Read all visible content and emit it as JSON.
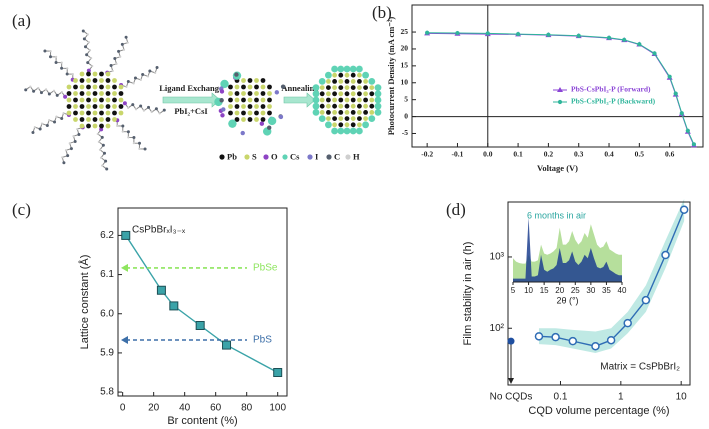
{
  "panel_labels": [
    "(a)",
    "(b)",
    "(c)",
    "(d)"
  ],
  "diagram": {
    "steps": [
      {
        "label": "Ligand Exchange",
        "reagent": "PbI₂+CsI"
      },
      {
        "label": "Annealing"
      }
    ],
    "legend": [
      {
        "name": "Pb",
        "color": "#111111"
      },
      {
        "name": "S",
        "color": "#c9d66b"
      },
      {
        "name": "O",
        "color": "#8e44c4"
      },
      {
        "name": "Cs",
        "color": "#5fd3b5"
      },
      {
        "name": "I",
        "color": "#7c78c9"
      },
      {
        "name": "C",
        "color": "#555f6e"
      },
      {
        "name": "H",
        "color": "#cfcfcf"
      }
    ]
  },
  "chart_data": [
    {
      "type": "line",
      "xlabel": "Voltage (V)",
      "ylabel": "Photocurrent Density (mA cm⁻²)",
      "x": [
        -0.2,
        -0.1,
        0,
        0.1,
        0.2,
        0.3,
        0.4,
        0.45,
        0.5,
        0.55,
        0.6,
        0.62,
        0.64,
        0.66,
        0.68
      ],
      "series": [
        {
          "name": "PbS-CsPbI₃-P (Forward)",
          "color": "#8b45d6",
          "marker": "triangle",
          "values": [
            24.6,
            24.5,
            24.4,
            24.3,
            24.1,
            23.8,
            23.2,
            22.6,
            21.3,
            18.5,
            11.5,
            6.5,
            0.8,
            -4.5,
            -8.5
          ]
        },
        {
          "name": "PbS-CsPbI₃-P (Backward)",
          "color": "#2fb59b",
          "marker": "circle",
          "values": [
            24.8,
            24.7,
            24.6,
            24.4,
            24.2,
            23.9,
            23.3,
            22.7,
            21.4,
            18.7,
            11.8,
            6.8,
            1.0,
            -4.2,
            -8.2
          ]
        }
      ],
      "xlim": [
        -0.25,
        0.71
      ],
      "xticks": [
        -0.2,
        -0.1,
        {
          "value": 0,
          "label": "0.0"
        },
        0.1,
        0.2,
        0.3,
        0.4,
        0.5,
        0.6
      ],
      "ylim": [
        -9,
        33
      ],
      "yticks": [
        -5,
        0,
        5,
        10,
        15,
        20,
        25
      ],
      "origin_lines": true,
      "legend": "right"
    },
    {
      "type": "line",
      "title": "CsPbBrₓI₃₋ₓ",
      "xlabel": "Br content (%)",
      "ylabel": "Lattice constant (Å)",
      "x": [
        2,
        25,
        33,
        50,
        67,
        100
      ],
      "series": [
        {
          "color": "#3aa3a8",
          "marker": "square",
          "values": [
            6.2,
            6.06,
            6.02,
            5.97,
            5.92,
            5.85
          ]
        }
      ],
      "xlim": [
        -3,
        106
      ],
      "xticks": [
        0,
        20,
        40,
        60,
        80,
        100
      ],
      "ylim": [
        5.79,
        6.27
      ],
      "yticks": [
        5.8,
        5.9,
        {
          "value": 6,
          "label": "6.0"
        },
        6.1,
        6.2
      ],
      "reference_lines": [
        {
          "label": "PbSe",
          "value": 6.117,
          "color": "#8ee55e"
        },
        {
          "label": "PbS",
          "value": 5.933,
          "color": "#3d6fa8"
        }
      ]
    },
    {
      "type": "line",
      "xlabel": "CQD volume percentage (%)",
      "ylabel": "Film stability in air (h)",
      "xlog": true,
      "ylog": true,
      "x": [
        0.044,
        0.083,
        0.16,
        0.38,
        0.69,
        1.3,
        2.6,
        5.5,
        11.2
      ],
      "series": [
        {
          "color": "#2f6db5",
          "marker": "hollow-circle",
          "values": [
            77,
            75,
            66,
            56,
            68,
            118,
            248,
            1065,
            4600
          ],
          "band_lower": [
            60,
            58,
            52,
            45,
            52,
            85,
            170,
            700,
            3200
          ],
          "band_upper": [
            100,
            100,
            95,
            90,
            100,
            170,
            400,
            1700,
            6500
          ],
          "band_color": "#bfe9e4"
        }
      ],
      "xlim": [
        0.0135,
        14
      ],
      "xticks": [
        0.1,
        1,
        10
      ],
      "ylim": [
        16,
        5900
      ],
      "yticks": [
        {
          "value": 100,
          "label": "10²"
        },
        {
          "value": 1000,
          "label": "10³"
        }
      ],
      "baseline_point": {
        "label": "No CQDs",
        "value": 66,
        "color": "#1f4fa0"
      },
      "annotation": "Matrix = CsPbBrI₂",
      "inset": {
        "type": "area",
        "annotation": "6 months in air",
        "xlabel": "2θ (°)",
        "x": [
          5,
          6,
          7,
          8,
          9,
          10,
          11,
          12,
          13,
          14,
          15,
          16,
          17,
          18,
          19,
          20,
          21,
          22,
          23,
          24,
          25,
          26,
          27,
          28,
          29,
          30,
          31,
          32,
          33,
          34,
          35,
          36,
          37,
          38,
          39,
          40
        ],
        "xlim": [
          5,
          40
        ],
        "xticks": [
          5,
          10,
          15,
          20,
          25,
          30,
          35,
          40
        ],
        "ylim": [
          0,
          100
        ],
        "series": [
          {
            "color": "#a9d98b",
            "values": [
              35,
              30,
              28,
              27,
              27,
              40,
              30,
              30,
              32,
              55,
              42,
              40,
              42,
              45,
              50,
              80,
              55,
              55,
              60,
              75,
              62,
              55,
              60,
              72,
              65,
              85,
              70,
              55,
              50,
              52,
              60,
              48,
              45,
              42,
              40,
              40
            ]
          },
          {
            "color": "#1d3f8f",
            "values": [
              5,
              5,
              5,
              5,
              5,
              95,
              8,
              8,
              10,
              40,
              18,
              15,
              18,
              20,
              25,
              50,
              28,
              28,
              32,
              45,
              30,
              25,
              30,
              40,
              35,
              50,
              35,
              22,
              20,
              22,
              30,
              18,
              15,
              12,
              10,
              10
            ]
          }
        ]
      }
    }
  ]
}
